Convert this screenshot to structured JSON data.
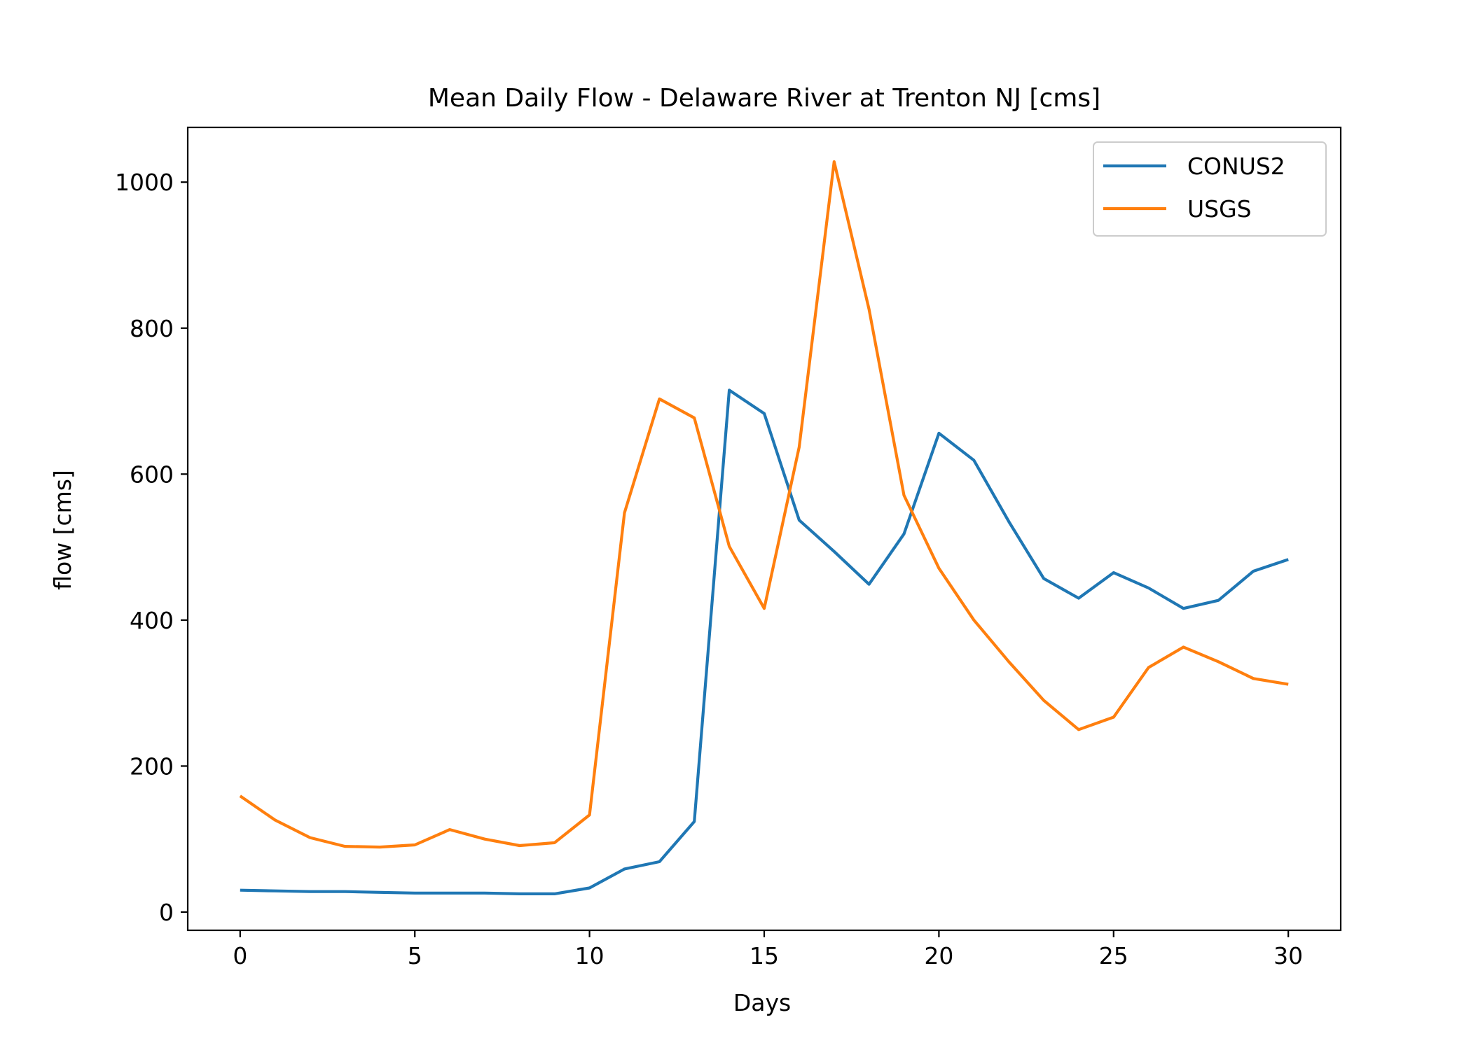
{
  "chart_data": {
    "type": "line",
    "title": "Mean Daily Flow - Delaware River at Trenton NJ [cms]",
    "xlabel": "Days",
    "ylabel": "flow [cms]",
    "xlim": [
      -1.5,
      31.5
    ],
    "ylim": [
      -25,
      1075
    ],
    "xticks": [
      0,
      5,
      10,
      15,
      20,
      25,
      30
    ],
    "yticks": [
      0,
      200,
      400,
      600,
      800,
      1000
    ],
    "grid": false,
    "legend_position": "upper right",
    "x": [
      0,
      1,
      2,
      3,
      4,
      5,
      6,
      7,
      8,
      9,
      10,
      11,
      12,
      13,
      14,
      15,
      16,
      17,
      18,
      19,
      20,
      21,
      22,
      23,
      24,
      25,
      26,
      27,
      28,
      29,
      30
    ],
    "series": [
      {
        "name": "CONUS2",
        "color": "#1f77b4",
        "values": [
          30,
          29,
          28,
          28,
          27,
          26,
          26,
          26,
          25,
          25,
          33,
          59,
          69,
          124,
          715,
          683,
          537,
          494,
          449,
          518,
          656,
          619,
          535,
          457,
          430,
          465,
          444,
          416,
          427,
          467,
          483
        ]
      },
      {
        "name": "USGS",
        "color": "#ff7f0e",
        "values": [
          159,
          126,
          102,
          90,
          89,
          92,
          113,
          100,
          91,
          95,
          133,
          547,
          703,
          677,
          501,
          416,
          637,
          1028,
          826,
          571,
          471,
          400,
          343,
          290,
          250,
          267,
          335,
          363,
          343,
          320,
          312
        ]
      }
    ]
  }
}
